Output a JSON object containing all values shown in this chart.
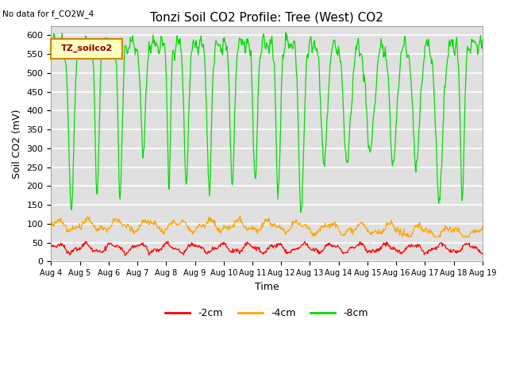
{
  "title": "Tonzi Soil CO2 Profile: Tree (West) CO2",
  "no_data_text": "No data for f_CO2W_4",
  "ylabel": "Soil CO2 (mV)",
  "xlabel": "Time",
  "ylim": [
    0,
    625
  ],
  "yticks": [
    0,
    50,
    100,
    150,
    200,
    250,
    300,
    350,
    400,
    450,
    500,
    550,
    600
  ],
  "series_labels": [
    "-2cm",
    "-4cm",
    "-8cm"
  ],
  "series_colors": [
    "#FF0000",
    "#FFA500",
    "#00DD00"
  ],
  "bg_color": "#E0E0E0",
  "grid_color": "#FFFFFF",
  "legend_label": "TZ_soilco2",
  "legend_box_facecolor": "#FFFFC0",
  "legend_box_edgecolor": "#CC8800",
  "x_start": 4.0,
  "x_end": 19.0,
  "x_ticks": [
    4,
    5,
    6,
    7,
    8,
    9,
    10,
    11,
    12,
    13,
    14,
    15,
    16,
    17,
    18,
    19
  ],
  "x_tick_labels": [
    "Aug 4",
    "Aug 5",
    "Aug 6",
    "Aug 7",
    "Aug 8",
    "Aug 9",
    "Aug 10",
    "Aug 11",
    "Aug 12",
    "Aug 13",
    "Aug 14",
    "Aug 15",
    "Aug 16",
    "Aug 17",
    "Aug 18",
    "Aug 19"
  ]
}
